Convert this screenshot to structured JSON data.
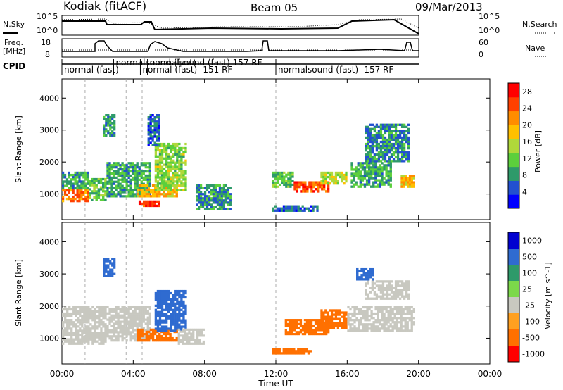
{
  "header": {
    "station": "Kodiak (fitACF)",
    "beam": "Beam 05",
    "date": "09/Mar/2013"
  },
  "small_panels": {
    "nsky_label": "N.Sky",
    "nsky_ticks": [
      "10^5",
      "10^0"
    ],
    "nsearch_label": "N.Search",
    "freq_label_1": "Freq.",
    "freq_label_2": "[MHz]",
    "freq_ticks": [
      "18",
      "8"
    ],
    "nave_label": "Nave",
    "nave_ticks": [
      "60",
      "0"
    ],
    "cpid_label": "CPID"
  },
  "cpid_segments": [
    {
      "start": 0.0,
      "label": "normal (fast)"
    },
    {
      "start": 2.9,
      "label": "normalsound (fast)"
    },
    {
      "start": 4.4,
      "label": "normal (fast) -151 RF"
    },
    {
      "start": 4.8,
      "label": "normalsound (fast) 157 RF"
    },
    {
      "start": 12.0,
      "label": "normalsound (fast) -157 RF"
    }
  ],
  "colors": {
    "power": [
      "#0000ff",
      "#2250d0",
      "#2e9a6a",
      "#5ccf3c",
      "#b0d83a",
      "#ffc000",
      "#ff8c00",
      "#ff4000",
      "#ff0000"
    ],
    "velocity": [
      "#0000d0",
      "#2f6bd0",
      "#2e9a6a",
      "#7cd84a",
      "#c9c9c0",
      "#ffa020",
      "#ff7000",
      "#ff3000",
      "#ff0000"
    ],
    "ground": "#c8c8c0"
  },
  "chart_data": [
    {
      "type": "heatmap",
      "name": "power",
      "ylabel": "Slant Range [km]",
      "xlim": [
        0,
        24
      ],
      "ylim": [
        200,
        4600
      ],
      "yticks": [
        "1000",
        "2000",
        "3000",
        "4000"
      ],
      "colorbar": {
        "label": "Power [dB]",
        "ticks": [
          "4",
          "8",
          "12",
          "16",
          "20",
          "24",
          "28"
        ],
        "range": [
          0,
          30
        ]
      },
      "regions": [
        {
          "t0": 0.0,
          "t1": 1.5,
          "r0": 750,
          "r1": 1150,
          "v": 24
        },
        {
          "t0": 0.0,
          "t1": 1.5,
          "r0": 1150,
          "r1": 1700,
          "v": 10
        },
        {
          "t0": 1.5,
          "t1": 2.5,
          "r0": 800,
          "r1": 1500,
          "v": 12
        },
        {
          "t0": 2.3,
          "t1": 3.0,
          "r0": 2800,
          "r1": 3500,
          "v": 8
        },
        {
          "t0": 2.5,
          "t1": 5.0,
          "r0": 900,
          "r1": 2000,
          "v": 10
        },
        {
          "t0": 4.2,
          "t1": 6.5,
          "r0": 900,
          "r1": 1300,
          "v": 20
        },
        {
          "t0": 4.3,
          "t1": 5.5,
          "r0": 600,
          "r1": 800,
          "v": 28
        },
        {
          "t0": 5.2,
          "t1": 7.0,
          "r0": 1100,
          "r1": 2600,
          "v": 14
        },
        {
          "t0": 4.8,
          "t1": 5.5,
          "r0": 2500,
          "r1": 3500,
          "v": 6
        },
        {
          "t0": 7.5,
          "t1": 9.5,
          "r0": 500,
          "r1": 1300,
          "v": 8
        },
        {
          "t0": 11.8,
          "t1": 13.0,
          "r0": 1200,
          "r1": 1700,
          "v": 12
        },
        {
          "t0": 13.0,
          "t1": 15.0,
          "r0": 1050,
          "r1": 1400,
          "v": 26
        },
        {
          "t0": 14.5,
          "t1": 16.0,
          "r0": 1300,
          "r1": 1700,
          "v": 16
        },
        {
          "t0": 11.8,
          "t1": 14.5,
          "r0": 450,
          "r1": 650,
          "v": 6
        },
        {
          "t0": 16.2,
          "t1": 18.5,
          "r0": 1200,
          "r1": 2000,
          "v": 10
        },
        {
          "t0": 17.0,
          "t1": 19.5,
          "r0": 2000,
          "r1": 3200,
          "v": 8
        },
        {
          "t0": 19.0,
          "t1": 19.8,
          "r0": 1200,
          "r1": 1600,
          "v": 20
        }
      ]
    },
    {
      "type": "heatmap",
      "name": "velocity",
      "xlabel": "Time UT",
      "ylabel": "Slant Range [km]",
      "xlim": [
        0,
        24
      ],
      "ylim": [
        200,
        4600
      ],
      "yticks": [
        "1000",
        "2000",
        "3000",
        "4000"
      ],
      "xticks": [
        "00:00",
        "04:00",
        "08:00",
        "12:00",
        "16:00",
        "20:00",
        "00:00"
      ],
      "colorbar": {
        "label": "Velocity [m s^-1]",
        "ticks": [
          "1000",
          "500",
          "100",
          "25",
          "-25",
          "-100",
          "-500",
          "-1000"
        ]
      },
      "regions": [
        {
          "t0": 0.0,
          "t1": 2.5,
          "r0": 800,
          "r1": 2000,
          "v": 0
        },
        {
          "t0": 2.5,
          "t1": 5.0,
          "r0": 900,
          "r1": 2000,
          "v": 0
        },
        {
          "t0": 2.3,
          "t1": 3.0,
          "r0": 2900,
          "r1": 3500,
          "v": 150
        },
        {
          "t0": 4.2,
          "t1": 6.5,
          "r0": 900,
          "r1": 1300,
          "v": -150
        },
        {
          "t0": 5.2,
          "t1": 7.0,
          "r0": 1200,
          "r1": 2500,
          "v": 150
        },
        {
          "t0": 6.5,
          "t1": 8.0,
          "r0": 800,
          "r1": 1300,
          "v": 0
        },
        {
          "t0": 11.8,
          "t1": 14.0,
          "r0": 500,
          "r1": 700,
          "v": -150
        },
        {
          "t0": 12.5,
          "t1": 15.0,
          "r0": 1100,
          "r1": 1600,
          "v": -300
        },
        {
          "t0": 14.5,
          "t1": 16.0,
          "r0": 1300,
          "r1": 1900,
          "v": -150
        },
        {
          "t0": 16.0,
          "t1": 19.8,
          "r0": 1200,
          "r1": 2000,
          "v": 0
        },
        {
          "t0": 17.0,
          "t1": 19.5,
          "r0": 2200,
          "r1": 2800,
          "v": 0
        },
        {
          "t0": 16.5,
          "t1": 17.5,
          "r0": 2800,
          "r1": 3200,
          "v": 150
        }
      ]
    }
  ]
}
